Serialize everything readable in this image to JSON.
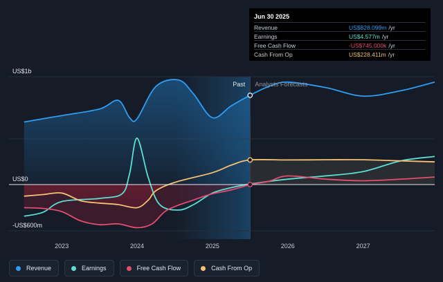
{
  "tooltip": {
    "date": "Jun 30 2025",
    "rows": [
      {
        "label": "Revenue",
        "value": "US$828.099m",
        "unit": "/yr",
        "color": "#2f9df3"
      },
      {
        "label": "Earnings",
        "value": "US$4.577m",
        "unit": "/yr",
        "color": "#5ce0d3"
      },
      {
        "label": "Free Cash Flow",
        "value": "-US$745.000k",
        "unit": "/yr",
        "color": "#e34d6f"
      },
      {
        "label": "Cash From Op",
        "value": "US$228.411m",
        "unit": "/yr",
        "color": "#f5c172"
      }
    ]
  },
  "legend": [
    {
      "label": "Revenue",
      "color": "#2f9df3"
    },
    {
      "label": "Earnings",
      "color": "#5ce0d3"
    },
    {
      "label": "Free Cash Flow",
      "color": "#e34d6f"
    },
    {
      "label": "Cash From Op",
      "color": "#f5c172"
    }
  ],
  "chart_data": {
    "type": "line",
    "y_unit": "US$ millions",
    "ylim": [
      -600,
      1000
    ],
    "y_tick_labels": [
      {
        "value": 1000,
        "label": "US$1b"
      },
      {
        "value": 0,
        "label": "US$0"
      },
      {
        "value": -600,
        "label": "-US$600m"
      }
    ],
    "xlim": [
      2022.3,
      2027.95
    ],
    "x_tick_labels": [
      {
        "value": 2023,
        "label": "2023"
      },
      {
        "value": 2024,
        "label": "2024"
      },
      {
        "value": 2025,
        "label": "2025"
      },
      {
        "value": 2026,
        "label": "2026"
      },
      {
        "value": 2027,
        "label": "2027"
      }
    ],
    "past_label": "Past",
    "forecast_label": "Analysts Forecasts",
    "past_end": 2025.5,
    "highlight_start": 2024.5,
    "series": [
      {
        "name": "Revenue",
        "color": "#2f9df3",
        "points": [
          [
            2022.5,
            580
          ],
          [
            2023.0,
            640
          ],
          [
            2023.5,
            700
          ],
          [
            2023.75,
            780
          ],
          [
            2023.9,
            620
          ],
          [
            2024.0,
            610
          ],
          [
            2024.25,
            910
          ],
          [
            2024.55,
            970
          ],
          [
            2024.75,
            840
          ],
          [
            2025.0,
            620
          ],
          [
            2025.25,
            730
          ],
          [
            2025.5,
            828
          ],
          [
            2025.75,
            910
          ],
          [
            2026.0,
            950
          ],
          [
            2026.5,
            900
          ],
          [
            2027.0,
            820
          ],
          [
            2027.5,
            870
          ],
          [
            2027.95,
            950
          ]
        ]
      },
      {
        "name": "Earnings",
        "color": "#5ce0d3",
        "points": [
          [
            2022.5,
            -410
          ],
          [
            2022.75,
            -360
          ],
          [
            2023.0,
            -220
          ],
          [
            2023.5,
            -180
          ],
          [
            2023.8,
            -120
          ],
          [
            2023.9,
            100
          ],
          [
            2024.0,
            430
          ],
          [
            2024.15,
            60
          ],
          [
            2024.3,
            -260
          ],
          [
            2024.55,
            -330
          ],
          [
            2024.75,
            -260
          ],
          [
            2025.0,
            -110
          ],
          [
            2025.25,
            -40
          ],
          [
            2025.5,
            5
          ],
          [
            2026.0,
            50
          ],
          [
            2026.5,
            80
          ],
          [
            2027.0,
            120
          ],
          [
            2027.5,
            220
          ],
          [
            2027.95,
            260
          ]
        ]
      },
      {
        "name": "Free Cash Flow",
        "color": "#e34d6f",
        "points": [
          [
            2022.5,
            -300
          ],
          [
            2022.75,
            -310
          ],
          [
            2023.0,
            -350
          ],
          [
            2023.25,
            -470
          ],
          [
            2023.5,
            -520
          ],
          [
            2023.75,
            -510
          ],
          [
            2024.0,
            -560
          ],
          [
            2024.2,
            -510
          ],
          [
            2024.4,
            -330
          ],
          [
            2024.75,
            -200
          ],
          [
            2025.0,
            -120
          ],
          [
            2025.25,
            -70
          ],
          [
            2025.5,
            -1
          ],
          [
            2025.75,
            30
          ],
          [
            2026.0,
            80
          ],
          [
            2026.5,
            50
          ],
          [
            2027.0,
            35
          ],
          [
            2027.5,
            50
          ],
          [
            2027.95,
            70
          ]
        ]
      },
      {
        "name": "Cash From Op",
        "color": "#f5c172",
        "points": [
          [
            2022.5,
            -150
          ],
          [
            2022.75,
            -130
          ],
          [
            2023.0,
            -110
          ],
          [
            2023.25,
            -210
          ],
          [
            2023.5,
            -240
          ],
          [
            2023.75,
            -260
          ],
          [
            2024.0,
            -300
          ],
          [
            2024.15,
            -200
          ],
          [
            2024.25,
            -80
          ],
          [
            2024.5,
            20
          ],
          [
            2025.0,
            110
          ],
          [
            2025.25,
            180
          ],
          [
            2025.5,
            228
          ],
          [
            2026.0,
            228
          ],
          [
            2026.5,
            230
          ],
          [
            2027.0,
            230
          ],
          [
            2027.5,
            220
          ],
          [
            2027.95,
            210
          ]
        ]
      }
    ]
  }
}
